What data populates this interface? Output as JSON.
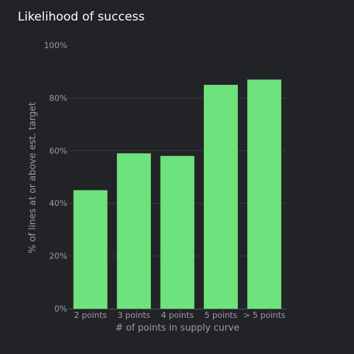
{
  "colors": {
    "background": "#222327",
    "bar": "#6ee27c",
    "text": "#9a9ca3",
    "title": "#ffffff",
    "grid": "#3a3b41"
  },
  "chart_data": {
    "type": "bar",
    "title": "Likelihood of success",
    "xlabel": "# of points in supply curve",
    "ylabel": "% of lines at or above est. target",
    "categories": [
      "2 points",
      "3 points",
      "4 points",
      "5 points",
      "> 5 points"
    ],
    "values": [
      45,
      59,
      58,
      85,
      87
    ],
    "ylim": [
      0,
      100
    ],
    "yticks": [
      0,
      20,
      40,
      60,
      80,
      100
    ],
    "ytick_labels": [
      "0%",
      "20%",
      "40%",
      "60%",
      "80%",
      "100%"
    ],
    "grid": true,
    "legend": "none"
  }
}
